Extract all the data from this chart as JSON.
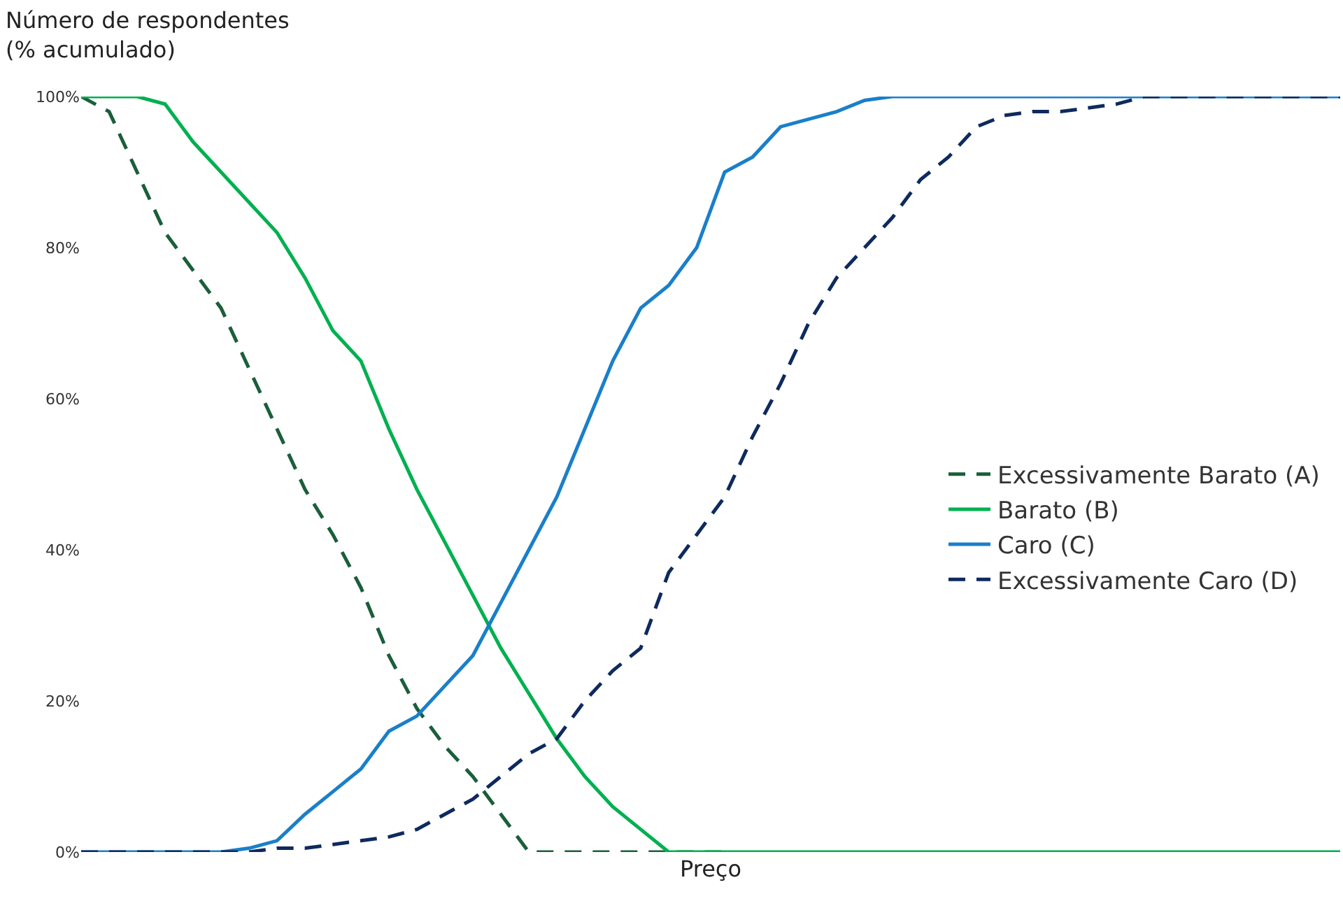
{
  "chart_data": {
    "type": "line",
    "ylabel": "Número de respondentes\n(% acumulado)",
    "xlabel": "Preço",
    "categories": [
      null,
      null,
      null,
      null,
      null,
      null,
      null,
      null,
      null,
      null,
      null,
      null,
      null,
      null,
      null,
      null,
      null,
      null,
      null,
      null,
      null,
      null,
      null,
      null,
      null,
      null,
      null,
      null,
      null,
      null,
      null,
      null,
      null,
      null,
      null,
      null,
      null,
      null,
      null,
      null,
      null,
      null,
      null,
      null,
      null,
      null
    ],
    "series": [
      {
        "name": "Excessivamente Barato (A)",
        "color": "#1b5e3b",
        "line_style": "dashed",
        "values": [
          100,
          98,
          90,
          82,
          77,
          72,
          64,
          56,
          48,
          42,
          35,
          26,
          19,
          14,
          10,
          5,
          0,
          0,
          0,
          0,
          0,
          0,
          0,
          0,
          null,
          null,
          null,
          null,
          null,
          null,
          null,
          null,
          null,
          null,
          null,
          null,
          null,
          null,
          null,
          null,
          null,
          null,
          null,
          null,
          null,
          null
        ]
      },
      {
        "name": "Barato (B)",
        "color": "#00b050",
        "line_style": "solid",
        "values": [
          100,
          100,
          100,
          99,
          94,
          90,
          86,
          82,
          76,
          69,
          65,
          56,
          48,
          41,
          34,
          27,
          21,
          15,
          10,
          6,
          3,
          0,
          0,
          0,
          0,
          0,
          0,
          0,
          0,
          0,
          0,
          0,
          0,
          0,
          0,
          0,
          0,
          0,
          0,
          0,
          0,
          0,
          0,
          0,
          0,
          0
        ]
      },
      {
        "name": "Caro (C)",
        "color": "#1a7fc9",
        "line_style": "solid",
        "values": [
          0,
          0,
          0,
          0,
          0,
          0,
          0.5,
          1.5,
          5,
          8,
          11,
          16,
          18,
          22,
          26,
          33,
          40,
          47,
          56,
          65,
          72,
          75,
          80,
          90,
          92,
          96,
          97,
          98,
          99.5,
          100,
          100,
          100,
          100,
          100,
          100,
          100,
          100,
          100,
          100,
          100,
          100,
          100,
          100,
          100,
          100,
          100
        ]
      },
      {
        "name": "Excessivamente Caro (D)",
        "color": "#0e2a5e",
        "line_style": "dashed",
        "values": [
          0,
          0,
          0,
          0,
          0,
          0,
          0,
          0.5,
          0.5,
          1,
          1.5,
          2,
          3,
          5,
          7,
          10,
          13,
          15,
          20,
          24,
          27,
          37,
          42,
          47,
          55,
          62,
          70,
          76,
          80,
          84,
          89,
          92,
          96,
          97.5,
          98,
          98,
          98.5,
          99,
          100,
          100,
          100,
          100,
          100,
          100,
          100,
          100
        ]
      }
    ],
    "ylim": [
      0,
      100
    ],
    "yticks": [
      {
        "value": 0,
        "label": "0%"
      },
      {
        "value": 20,
        "label": "20%"
      },
      {
        "value": 40,
        "label": "40%"
      },
      {
        "value": 60,
        "label": "60%"
      },
      {
        "value": 80,
        "label": "80%"
      },
      {
        "value": 100,
        "label": "100%"
      }
    ],
    "grid": false,
    "legend": "right",
    "tick_labels": "y",
    "marker": "none"
  }
}
